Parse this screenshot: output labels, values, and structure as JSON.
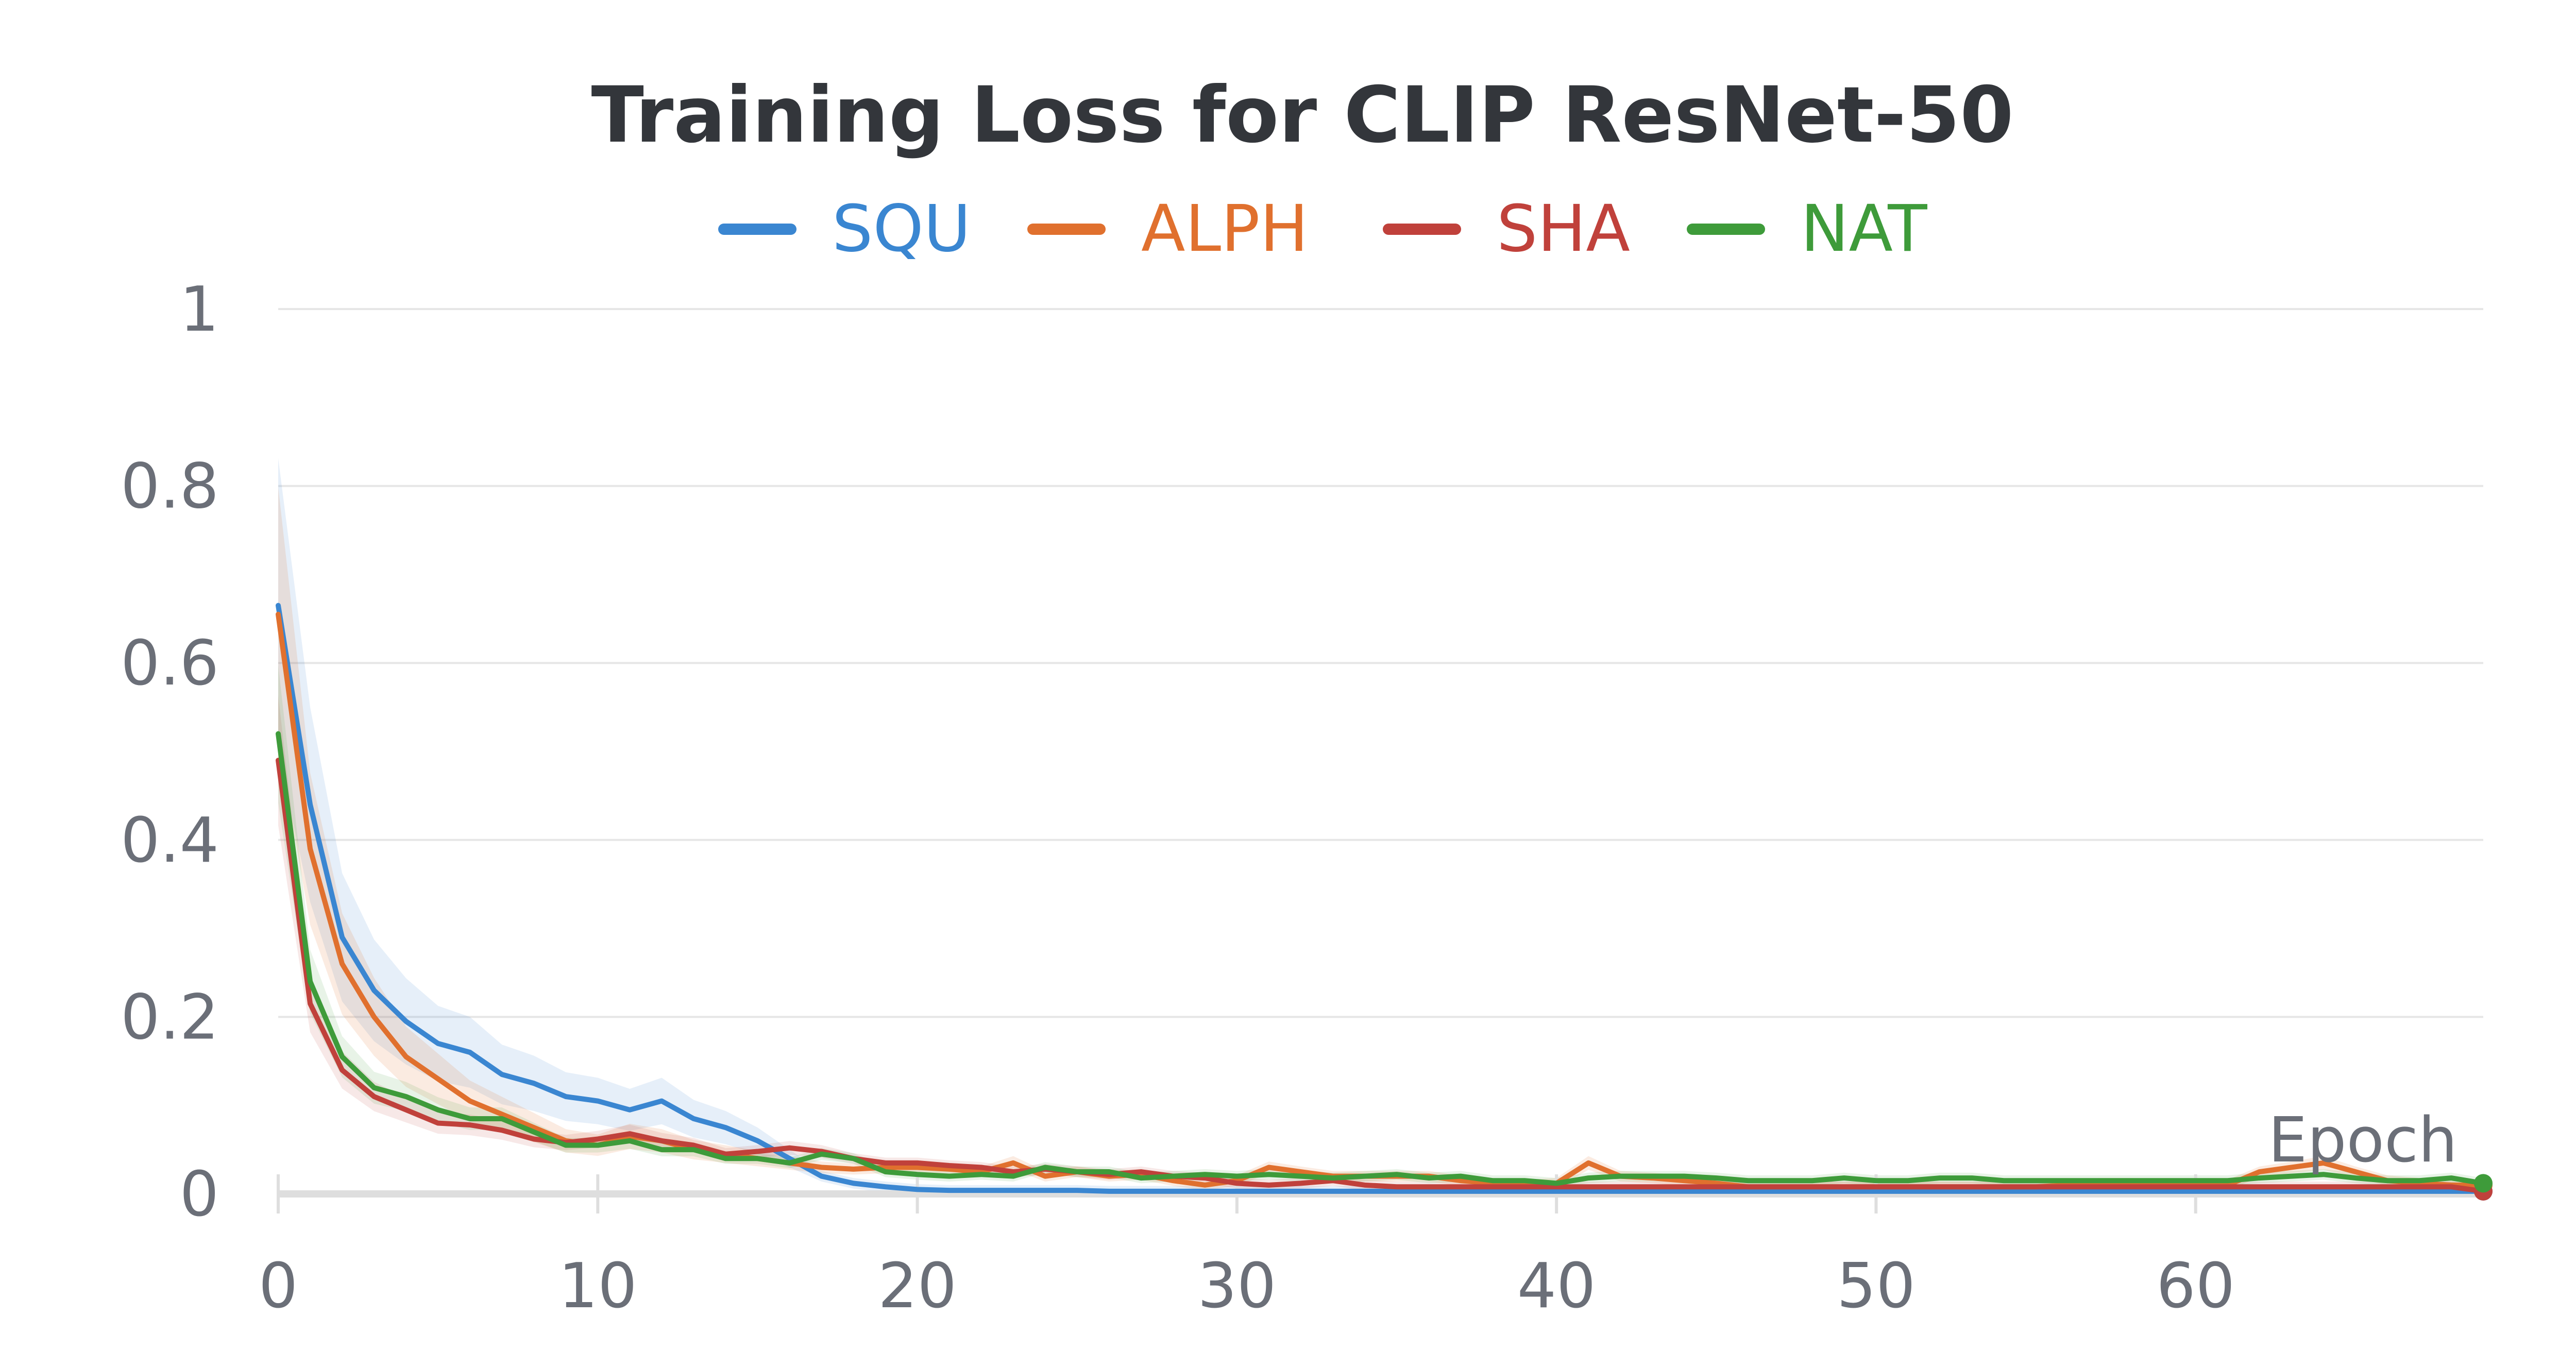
{
  "chart_data": {
    "type": "line",
    "title": "Training Loss for CLIP ResNet-50",
    "xlabel": "Epoch",
    "ylabel": "",
    "xlim": [
      0,
      69
    ],
    "ylim": [
      0,
      1
    ],
    "x_ticks": [
      "0",
      "10",
      "20",
      "30",
      "40",
      "50",
      "60"
    ],
    "y_ticks": [
      "0",
      "0.2",
      "0.4",
      "0.6",
      "0.8",
      "1"
    ],
    "legend": [
      "SQU",
      "ALPH",
      "SHA",
      "NAT"
    ],
    "colors": {
      "SQU": "#3a86d1",
      "ALPH": "#e0702e",
      "SHA": "#c0413b",
      "NAT": "#3e9b3a"
    },
    "series": [
      {
        "name": "SQU",
        "color": "#3a86d1",
        "values": [
          0.665,
          0.44,
          0.29,
          0.23,
          0.195,
          0.17,
          0.16,
          0.135,
          0.125,
          0.11,
          0.105,
          0.095,
          0.105,
          0.085,
          0.075,
          0.06,
          0.04,
          0.02,
          0.012,
          0.008,
          0.005,
          0.004,
          0.004,
          0.004,
          0.004,
          0.004,
          0.003,
          0.003,
          0.003,
          0.003,
          0.003,
          0.003,
          0.003,
          0.003,
          0.003,
          0.003,
          0.003,
          0.003,
          0.003,
          0.003,
          0.003,
          0.003,
          0.003,
          0.003,
          0.003,
          0.003,
          0.003,
          0.003,
          0.003,
          0.003,
          0.003,
          0.003,
          0.003,
          0.003,
          0.003,
          0.003,
          0.003,
          0.003,
          0.003,
          0.003,
          0.003,
          0.003,
          0.003,
          0.003,
          0.003,
          0.003,
          0.003,
          0.003,
          0.003,
          0.003
        ]
      },
      {
        "name": "ALPH",
        "color": "#e0702e",
        "values": [
          0.655,
          0.39,
          0.26,
          0.2,
          0.155,
          0.13,
          0.105,
          0.09,
          0.075,
          0.06,
          0.055,
          0.065,
          0.06,
          0.05,
          0.045,
          0.04,
          0.035,
          0.03,
          0.028,
          0.03,
          0.03,
          0.028,
          0.025,
          0.035,
          0.02,
          0.025,
          0.02,
          0.022,
          0.015,
          0.01,
          0.015,
          0.03,
          0.025,
          0.02,
          0.02,
          0.02,
          0.02,
          0.015,
          0.012,
          0.01,
          0.012,
          0.035,
          0.02,
          0.018,
          0.015,
          0.012,
          0.008,
          0.008,
          0.008,
          0.008,
          0.008,
          0.008,
          0.008,
          0.008,
          0.008,
          0.008,
          0.01,
          0.012,
          0.012,
          0.01,
          0.012,
          0.01,
          0.025,
          0.03,
          0.035,
          0.025,
          0.015,
          0.012,
          0.01,
          0.01
        ]
      },
      {
        "name": "SHA",
        "color": "#c0413b",
        "values": [
          0.49,
          0.215,
          0.14,
          0.11,
          0.095,
          0.08,
          0.078,
          0.072,
          0.062,
          0.058,
          0.062,
          0.068,
          0.06,
          0.055,
          0.045,
          0.048,
          0.052,
          0.048,
          0.04,
          0.035,
          0.035,
          0.032,
          0.03,
          0.025,
          0.028,
          0.025,
          0.022,
          0.025,
          0.02,
          0.018,
          0.012,
          0.01,
          0.012,
          0.015,
          0.01,
          0.008,
          0.008,
          0.008,
          0.008,
          0.008,
          0.008,
          0.008,
          0.008,
          0.008,
          0.008,
          0.008,
          0.008,
          0.008,
          0.008,
          0.008,
          0.008,
          0.008,
          0.008,
          0.008,
          0.008,
          0.008,
          0.008,
          0.008,
          0.008,
          0.008,
          0.008,
          0.008,
          0.008,
          0.008,
          0.008,
          0.008,
          0.008,
          0.008,
          0.008,
          0.003
        ]
      },
      {
        "name": "NAT",
        "color": "#3e9b3a",
        "values": [
          0.52,
          0.24,
          0.155,
          0.12,
          0.11,
          0.095,
          0.085,
          0.085,
          0.07,
          0.055,
          0.055,
          0.06,
          0.05,
          0.05,
          0.04,
          0.04,
          0.035,
          0.045,
          0.04,
          0.025,
          0.022,
          0.02,
          0.022,
          0.02,
          0.03,
          0.025,
          0.025,
          0.018,
          0.02,
          0.022,
          0.02,
          0.022,
          0.02,
          0.018,
          0.02,
          0.022,
          0.018,
          0.02,
          0.015,
          0.015,
          0.012,
          0.018,
          0.02,
          0.02,
          0.02,
          0.018,
          0.015,
          0.015,
          0.015,
          0.018,
          0.015,
          0.015,
          0.018,
          0.018,
          0.015,
          0.015,
          0.015,
          0.015,
          0.015,
          0.015,
          0.015,
          0.015,
          0.018,
          0.02,
          0.022,
          0.018,
          0.015,
          0.015,
          0.018,
          0.012
        ]
      }
    ]
  }
}
